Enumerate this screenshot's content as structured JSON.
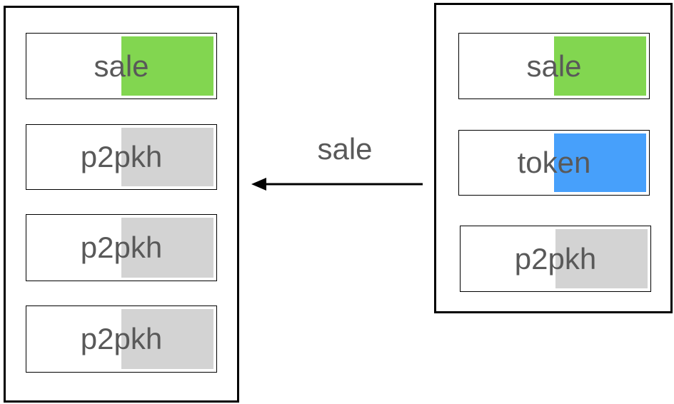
{
  "colors": {
    "sale": "#82d650",
    "token": "#47a0fb",
    "p2pkh": "#d3d3d3"
  },
  "left_stack": {
    "items": [
      {
        "label": "sale",
        "kind": "sale"
      },
      {
        "label": "p2pkh",
        "kind": "p2pkh"
      },
      {
        "label": "p2pkh",
        "kind": "p2pkh"
      },
      {
        "label": "p2pkh",
        "kind": "p2pkh"
      }
    ]
  },
  "right_stack": {
    "items": [
      {
        "label": "sale",
        "kind": "sale"
      },
      {
        "label": "token",
        "kind": "token"
      },
      {
        "label": "p2pkh",
        "kind": "p2pkh"
      }
    ]
  },
  "connector": {
    "label": "sale",
    "direction": "right-to-left"
  }
}
